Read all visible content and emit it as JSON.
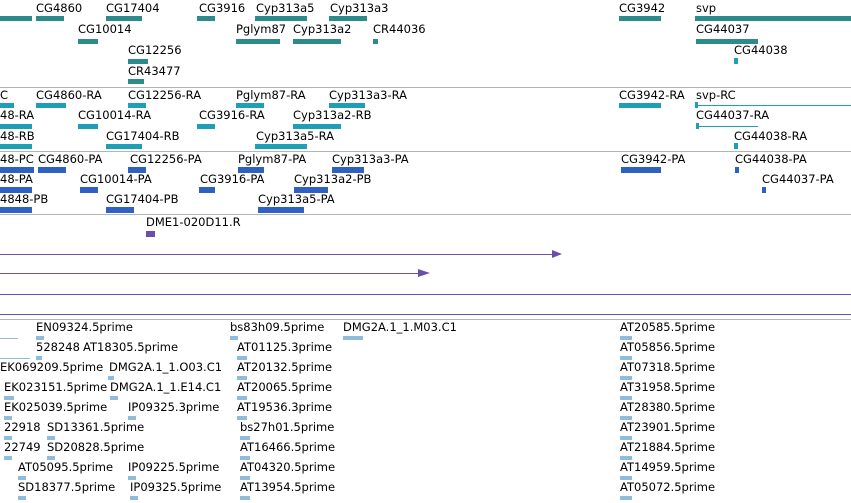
{
  "colors": {
    "gene": "#2e8b8b",
    "mrna": "#1f9eb8",
    "protein": "#2f62c0",
    "cdna": "#6a4fa8",
    "est": "#8fbbdc",
    "separator": "#b4b4b4"
  },
  "tracks": {
    "gene": {
      "labels": {
        "cg4860": "CG4860",
        "cg17404": "CG17404",
        "cg3916": "CG3916",
        "cyp313a5": "Cyp313a5",
        "cyp313a3": "Cyp313a3",
        "cg3942": "CG3942",
        "svp": "svp",
        "cg10014": "CG10014",
        "pglym87": "Pglym87",
        "cyp313a2": "Cyp313a2",
        "cr44036": "CR44036",
        "cg44037": "CG44037",
        "cg12256": "CG12256",
        "cg44038": "CG44038",
        "cr43477": "CR43477"
      }
    },
    "mrna": {
      "labels": {
        "cut_c": "C",
        "cg4860_ra": "CG4860-RA",
        "cg12256_ra": "CG12256-RA",
        "pglym87_ra": "Pglym87-RA",
        "cyp313a3_ra": "Cyp313a3-RA",
        "cg3942_ra": "CG3942-RA",
        "svp_rc": "svp-RC",
        "cut_48ra": "48-RA",
        "cg10014_ra": "CG10014-RA",
        "cg3916_ra": "CG3916-RA",
        "cyp313a2_rb": "Cyp313a2-RB",
        "cg44037_ra": "CG44037-RA",
        "cut_48rb": "48-RB",
        "cg17404_rb": "CG17404-RB",
        "cyp313a5_ra": "Cyp313a5-RA",
        "cg44038_ra": "CG44038-RA"
      }
    },
    "protein": {
      "labels": {
        "cut_48pc": "48-PC",
        "cg4860_pa": "CG4860-PA",
        "cg12256_pa": "CG12256-PA",
        "pglym87_pa": "Pglym87-PA",
        "cyp313a3_pa": "Cyp313a3-PA",
        "cg3942_pa": "CG3942-PA",
        "cg44038_pa": "CG44038-PA",
        "cut_48pa": "48-PA",
        "cg10014_pa": "CG10014-PA",
        "cg3916_pa": "CG3916-PA",
        "cyp313a2_pb": "Cyp313a2-PB",
        "cg44037_pa": "CG44037-PA",
        "cut_4848pb": "4848-PB",
        "cg17404_pb": "CG17404-PB",
        "cyp313a5_pa": "Cyp313a5-PA"
      }
    },
    "cdna": {
      "labels": {
        "dme1": "DME1-020D11.R"
      }
    },
    "est": {
      "labels": {
        "en09324": "EN09324.5prime",
        "bs83h09": "bs83h09.5prime",
        "dmg2a_m03": "DMG2A.1_1.M03.C1",
        "at20585": "AT20585.5prime",
        "c528248": "528248",
        "at18305": "AT18305.5prime",
        "at01125": "AT01125.3prime",
        "at05856": "AT05856.5prime",
        "ek069209": "EK069209.5prime",
        "dmg2a_o03": "DMG2A.1_1.O03.C1",
        "at20132": "AT20132.5prime",
        "at07318": "AT07318.5prime",
        "ek023151": "EK023151.5prime",
        "dmg2a_e14": "DMG2A.1_1.E14.C1",
        "at20065": "AT20065.5prime",
        "at31958": "AT31958.5prime",
        "ek025039": "EK025039.5prime",
        "ip09325_3": "IP09325.3prime",
        "at19536": "AT19536.3prime",
        "at28380": "AT28380.5prime",
        "c22918": "22918",
        "sd13361": "SD13361.5prime",
        "bs27h01": "bs27h01.5prime",
        "at23901": "AT23901.5prime",
        "c22749": "22749",
        "sd20828": "SD20828.5prime",
        "at16466": "AT16466.5prime",
        "at21884": "AT21884.5prime",
        "at05095": "AT05095.5prime",
        "ip09225": "IP09225.5prime",
        "at04320": "AT04320.5prime",
        "at14959": "AT14959.5prime",
        "sd18377": "SD18377.5prime",
        "ip09325_5": "IP09325.5prime",
        "at13954": "AT13954.5prime",
        "at05072": "AT05072.5prime"
      }
    }
  }
}
